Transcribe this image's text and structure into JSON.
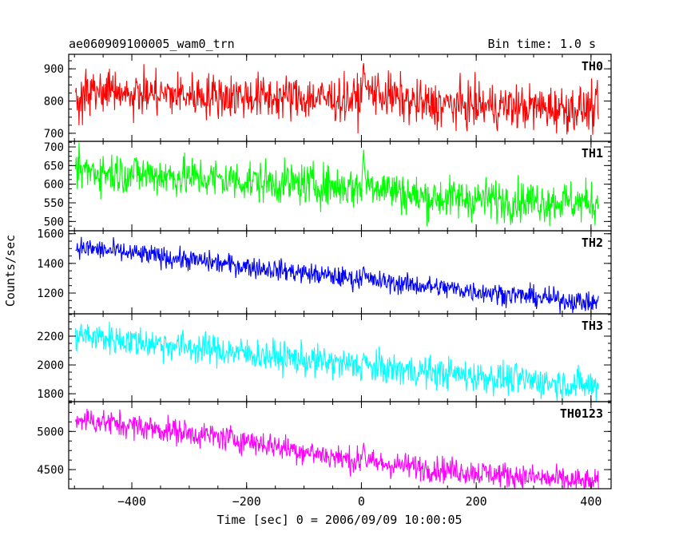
{
  "chart_data": {
    "type": "line",
    "title": "ae060909100005_wam0_trn",
    "subtitle": "Bin time: 1.0 s",
    "xlabel": "Time [sec] 0 = 2006/09/09 10:00:05",
    "ylabel": "Counts/sec",
    "xlim": [
      -510,
      435
    ],
    "x_ticks": [
      -400,
      -200,
      0,
      200,
      400
    ],
    "x_range": [
      -498,
      413
    ],
    "panels": [
      {
        "name": "TH0",
        "color": "#ff0000",
        "ylim": [
          675,
          945
        ],
        "y_ticks": [
          700,
          800,
          900
        ],
        "trend": [
          [
            -498,
            828
          ],
          [
            0,
            805
          ],
          [
            10,
            835
          ],
          [
            100,
            790
          ],
          [
            413,
            775
          ]
        ],
        "noise": 35,
        "spike": {
          "x": 4,
          "value": 920
        }
      },
      {
        "name": "TH1",
        "color": "#00ff00",
        "ylim": [
          475,
          715
        ],
        "y_ticks": [
          500,
          550,
          600,
          650,
          700
        ],
        "trend": [
          [
            -498,
            638
          ],
          [
            0,
            590
          ],
          [
            10,
            605
          ],
          [
            100,
            565
          ],
          [
            413,
            550
          ]
        ],
        "noise": 28,
        "spike": {
          "x": 4,
          "value": 690
        }
      },
      {
        "name": "TH2",
        "color": "#0000ff",
        "ylim": [
          1060,
          1620
        ],
        "y_ticks": [
          1200,
          1400,
          1600
        ],
        "trend": [
          [
            -498,
            1510
          ],
          [
            -200,
            1380
          ],
          [
            0,
            1290
          ],
          [
            413,
            1130
          ]
        ],
        "noise": 35,
        "spike": {
          "x": 4,
          "value": 1390
        }
      },
      {
        "name": "TH3",
        "color": "#00ffff",
        "ylim": [
          1745,
          2355
        ],
        "y_ticks": [
          1800,
          2000,
          2200
        ],
        "trend": [
          [
            -498,
            2210
          ],
          [
            -200,
            2080
          ],
          [
            0,
            1990
          ],
          [
            413,
            1850
          ]
        ],
        "noise": 55,
        "spike": {
          "x": 4,
          "value": 2080
        }
      },
      {
        "name": "TH0123",
        "color": "#ff00ff",
        "ylim": [
          4250,
          5390
        ],
        "y_ticks": [
          4500,
          5000
        ],
        "trend": [
          [
            -498,
            5170
          ],
          [
            -200,
            4880
          ],
          [
            0,
            4600
          ],
          [
            413,
            4320
          ]
        ],
        "noise": 85,
        "spike": {
          "x": 4,
          "value": 4870
        }
      }
    ],
    "grid": false,
    "legend": "none"
  }
}
